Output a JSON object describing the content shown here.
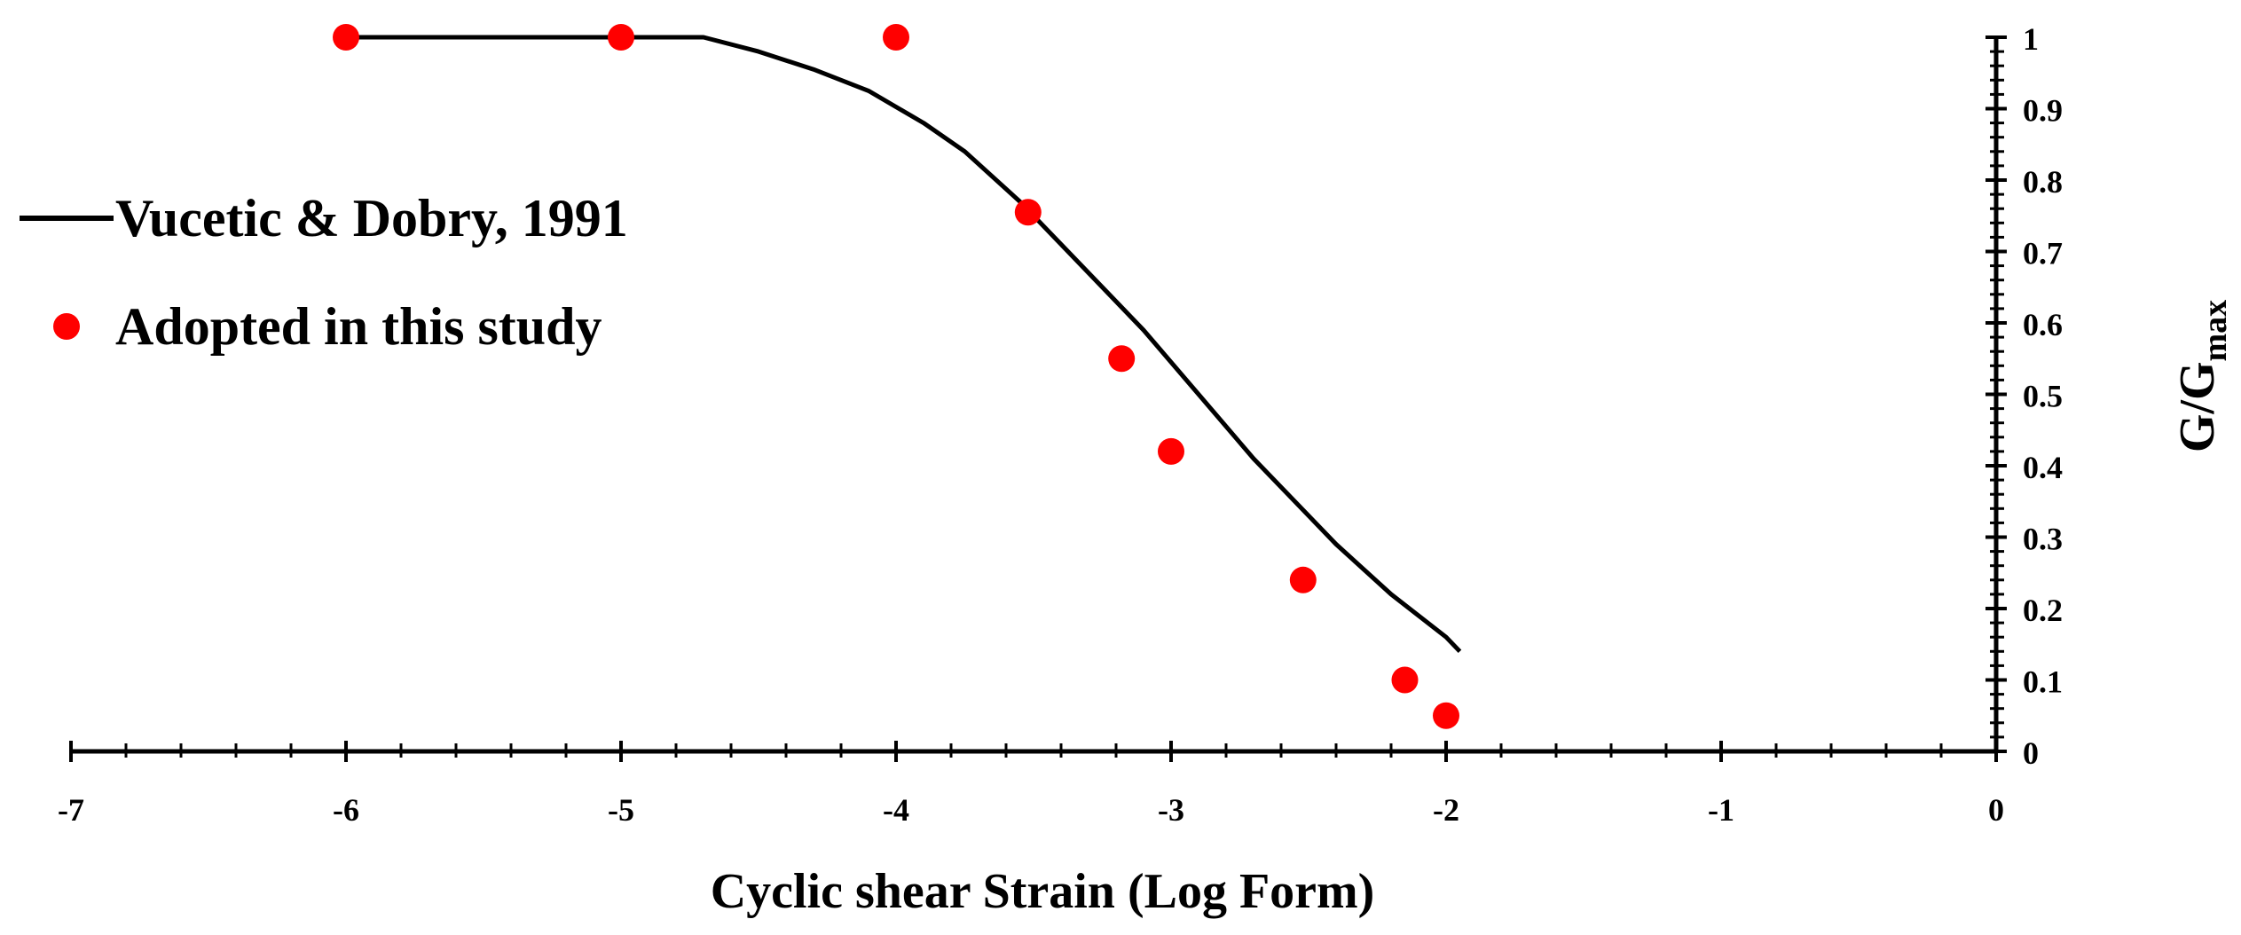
{
  "chart_data": {
    "type": "scatter",
    "title": "",
    "xlabel": "Cyclic shear Strain (Log Form)",
    "ylabel_main": "G/G",
    "ylabel_sub": "max",
    "xlim": [
      -7,
      0
    ],
    "ylim": [
      0,
      1
    ],
    "x_ticks": [
      "-7",
      "-6",
      "-5",
      "-4",
      "-3",
      "-2",
      "-1",
      "0"
    ],
    "y_ticks": [
      "0",
      "0.1",
      "0.2",
      "0.3",
      "0.4",
      "0.5",
      "0.6",
      "0.7",
      "0.8",
      "0.9",
      "1"
    ],
    "y_axis_position": "right",
    "grid": false,
    "legend_position": "left",
    "series": [
      {
        "name": "Vucetic & Dobry, 1991",
        "kind": "line",
        "color": "#000000",
        "x": [
          -6.0,
          -5.5,
          -5.0,
          -4.7,
          -4.5,
          -4.3,
          -4.1,
          -3.9,
          -3.75,
          -3.55,
          -3.3,
          -3.1,
          -2.9,
          -2.7,
          -2.5,
          -2.4,
          -2.2,
          -2.0,
          -1.95
        ],
        "y": [
          1.0,
          1.0,
          1.0,
          1.0,
          0.98,
          0.955,
          0.925,
          0.88,
          0.84,
          0.77,
          0.67,
          0.59,
          0.5,
          0.41,
          0.33,
          0.29,
          0.22,
          0.16,
          0.14
        ]
      },
      {
        "name": "Adopted in this study",
        "kind": "scatter",
        "color": "#ff0000",
        "x": [
          -6.0,
          -5.0,
          -4.0,
          -3.52,
          -3.18,
          -3.0,
          -2.52,
          -2.15,
          -2.0
        ],
        "y": [
          1.0,
          1.0,
          1.0,
          0.755,
          0.55,
          0.42,
          0.24,
          0.1,
          0.05
        ]
      }
    ]
  }
}
